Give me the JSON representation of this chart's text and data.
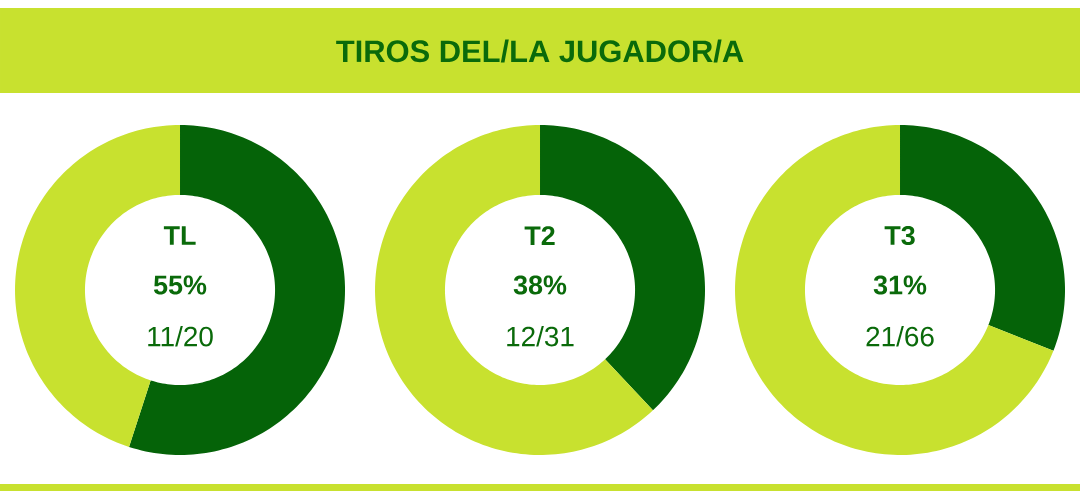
{
  "chart_data": [
    {
      "type": "other",
      "title": "TIROS DEL/LA JUGADOR/A"
    },
    {
      "type": "donut",
      "title": "TL",
      "categories": [
        null,
        null
      ],
      "values": [
        55,
        45
      ],
      "colors": [
        "#056308",
        "#c8e12f"
      ],
      "value_labels": [
        "55%",
        null
      ],
      "annotations": [
        "11/20"
      ]
    },
    {
      "type": "donut",
      "title": "T2",
      "categories": [
        null,
        null
      ],
      "values": [
        38,
        62
      ],
      "colors": [
        "#056308",
        "#c8e12f"
      ],
      "value_labels": [
        "38%",
        null
      ],
      "annotations": [
        "12/31"
      ]
    },
    {
      "type": "donut",
      "title": "T3",
      "categories": [
        null,
        null
      ],
      "values": [
        31,
        69
      ],
      "colors": [
        "#056308",
        "#c8e12f"
      ],
      "value_labels": [
        "31%",
        null
      ],
      "annotations": [
        "21/66"
      ]
    }
  ]
}
